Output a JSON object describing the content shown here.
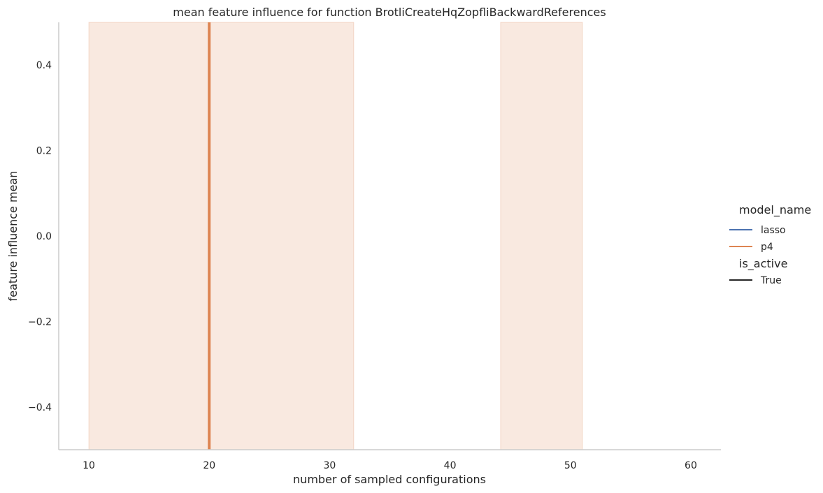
{
  "chart_data": {
    "type": "line",
    "title": "mean feature influence for function BrotliCreateHqZopfliBackwardReferences",
    "xlabel": "number of sampled configurations",
    "ylabel": "feature influence mean",
    "xlim": [
      7.5,
      62.5
    ],
    "ylim": [
      -0.5,
      0.5
    ],
    "x_ticks": [
      10,
      20,
      30,
      40,
      50,
      60
    ],
    "y_ticks": [
      -0.4,
      -0.2,
      0.0,
      0.2,
      0.4
    ],
    "y_tick_labels": [
      "−0.4",
      "−0.2",
      "0.0",
      "0.2",
      "0.4"
    ],
    "grid": false,
    "legend_position": "right",
    "legend": {
      "hue_title": "model_name",
      "style_title": "is_active",
      "entries": [
        {
          "label": "lasso",
          "color": "#4c72b0",
          "group": "hue"
        },
        {
          "label": "p4",
          "color": "#dd8452",
          "group": "hue"
        },
        {
          "label": "True",
          "color": "#262626",
          "group": "style"
        }
      ]
    },
    "series": [
      {
        "name": "lasso",
        "color": "#4c72b0",
        "x": [],
        "y": []
      },
      {
        "name": "p4",
        "color": "#dd8452",
        "vertical_line_x": 20,
        "ci_bands": [
          [
            10,
            32
          ],
          [
            44.2,
            51
          ]
        ]
      }
    ]
  }
}
